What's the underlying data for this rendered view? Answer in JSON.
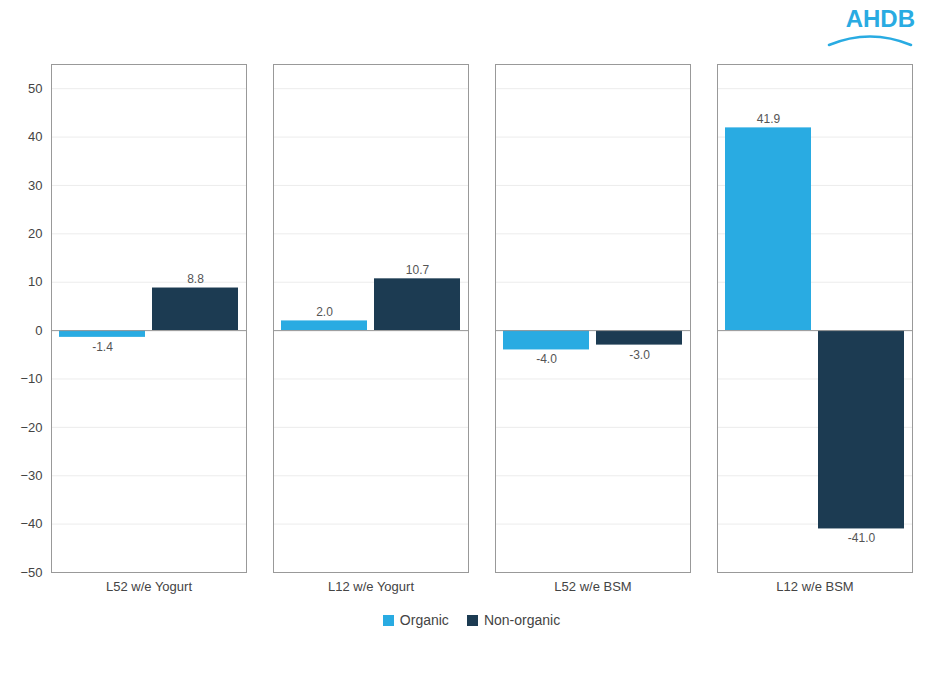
{
  "chart_data": {
    "type": "bar",
    "categories": [
      "L52 w/e Yogurt",
      "L12 w/e Yogurt",
      "L52 w/e BSM",
      "L12 w/e BSM"
    ],
    "series": [
      {
        "name": "Organic",
        "color": "#29ABE2",
        "values": [
          -1.4,
          2.0,
          -4.0,
          41.9
        ],
        "value_labels": [
          "-1.4",
          "2.0",
          "-4.0",
          "41.9"
        ]
      },
      {
        "name": "Non-organic",
        "color": "#1C3B52",
        "values": [
          8.8,
          10.7,
          -3.0,
          -41.0
        ],
        "value_labels": [
          "8.8",
          "10.7",
          "-3.0",
          "-41.0"
        ]
      }
    ],
    "ylim": [
      -50,
      55
    ],
    "yticks": [
      -50,
      -40,
      -30,
      -20,
      -10,
      0,
      10,
      20,
      30,
      40,
      50
    ],
    "grid": true,
    "legend": "bottom",
    "data_labels": true,
    "annotations": [
      {
        "text": "AHDB",
        "color": "#29ABE2"
      }
    ]
  }
}
